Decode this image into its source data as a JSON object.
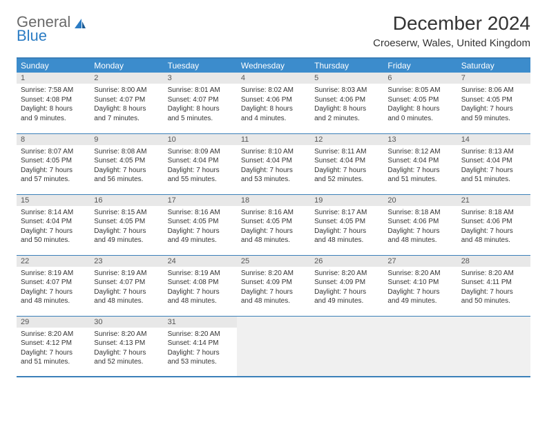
{
  "logo": {
    "line1": "General",
    "line2": "Blue"
  },
  "title": "December 2024",
  "subtitle": "Croeserw, Wales, United Kingdom",
  "colors": {
    "header_bg": "#3c8ccc",
    "border": "#3a7fb8",
    "daynum_bg": "#e8e8e8",
    "empty_bg": "#f0f0f0",
    "logo_gray": "#6a6a6a",
    "logo_blue": "#2b7cc4"
  },
  "day_headers": [
    "Sunday",
    "Monday",
    "Tuesday",
    "Wednesday",
    "Thursday",
    "Friday",
    "Saturday"
  ],
  "weeks": [
    [
      {
        "n": "1",
        "sunrise": "Sunrise: 7:58 AM",
        "sunset": "Sunset: 4:08 PM",
        "daylight": "Daylight: 8 hours and 9 minutes."
      },
      {
        "n": "2",
        "sunrise": "Sunrise: 8:00 AM",
        "sunset": "Sunset: 4:07 PM",
        "daylight": "Daylight: 8 hours and 7 minutes."
      },
      {
        "n": "3",
        "sunrise": "Sunrise: 8:01 AM",
        "sunset": "Sunset: 4:07 PM",
        "daylight": "Daylight: 8 hours and 5 minutes."
      },
      {
        "n": "4",
        "sunrise": "Sunrise: 8:02 AM",
        "sunset": "Sunset: 4:06 PM",
        "daylight": "Daylight: 8 hours and 4 minutes."
      },
      {
        "n": "5",
        "sunrise": "Sunrise: 8:03 AM",
        "sunset": "Sunset: 4:06 PM",
        "daylight": "Daylight: 8 hours and 2 minutes."
      },
      {
        "n": "6",
        "sunrise": "Sunrise: 8:05 AM",
        "sunset": "Sunset: 4:05 PM",
        "daylight": "Daylight: 8 hours and 0 minutes."
      },
      {
        "n": "7",
        "sunrise": "Sunrise: 8:06 AM",
        "sunset": "Sunset: 4:05 PM",
        "daylight": "Daylight: 7 hours and 59 minutes."
      }
    ],
    [
      {
        "n": "8",
        "sunrise": "Sunrise: 8:07 AM",
        "sunset": "Sunset: 4:05 PM",
        "daylight": "Daylight: 7 hours and 57 minutes."
      },
      {
        "n": "9",
        "sunrise": "Sunrise: 8:08 AM",
        "sunset": "Sunset: 4:05 PM",
        "daylight": "Daylight: 7 hours and 56 minutes."
      },
      {
        "n": "10",
        "sunrise": "Sunrise: 8:09 AM",
        "sunset": "Sunset: 4:04 PM",
        "daylight": "Daylight: 7 hours and 55 minutes."
      },
      {
        "n": "11",
        "sunrise": "Sunrise: 8:10 AM",
        "sunset": "Sunset: 4:04 PM",
        "daylight": "Daylight: 7 hours and 53 minutes."
      },
      {
        "n": "12",
        "sunrise": "Sunrise: 8:11 AM",
        "sunset": "Sunset: 4:04 PM",
        "daylight": "Daylight: 7 hours and 52 minutes."
      },
      {
        "n": "13",
        "sunrise": "Sunrise: 8:12 AM",
        "sunset": "Sunset: 4:04 PM",
        "daylight": "Daylight: 7 hours and 51 minutes."
      },
      {
        "n": "14",
        "sunrise": "Sunrise: 8:13 AM",
        "sunset": "Sunset: 4:04 PM",
        "daylight": "Daylight: 7 hours and 51 minutes."
      }
    ],
    [
      {
        "n": "15",
        "sunrise": "Sunrise: 8:14 AM",
        "sunset": "Sunset: 4:04 PM",
        "daylight": "Daylight: 7 hours and 50 minutes."
      },
      {
        "n": "16",
        "sunrise": "Sunrise: 8:15 AM",
        "sunset": "Sunset: 4:05 PM",
        "daylight": "Daylight: 7 hours and 49 minutes."
      },
      {
        "n": "17",
        "sunrise": "Sunrise: 8:16 AM",
        "sunset": "Sunset: 4:05 PM",
        "daylight": "Daylight: 7 hours and 49 minutes."
      },
      {
        "n": "18",
        "sunrise": "Sunrise: 8:16 AM",
        "sunset": "Sunset: 4:05 PM",
        "daylight": "Daylight: 7 hours and 48 minutes."
      },
      {
        "n": "19",
        "sunrise": "Sunrise: 8:17 AM",
        "sunset": "Sunset: 4:05 PM",
        "daylight": "Daylight: 7 hours and 48 minutes."
      },
      {
        "n": "20",
        "sunrise": "Sunrise: 8:18 AM",
        "sunset": "Sunset: 4:06 PM",
        "daylight": "Daylight: 7 hours and 48 minutes."
      },
      {
        "n": "21",
        "sunrise": "Sunrise: 8:18 AM",
        "sunset": "Sunset: 4:06 PM",
        "daylight": "Daylight: 7 hours and 48 minutes."
      }
    ],
    [
      {
        "n": "22",
        "sunrise": "Sunrise: 8:19 AM",
        "sunset": "Sunset: 4:07 PM",
        "daylight": "Daylight: 7 hours and 48 minutes."
      },
      {
        "n": "23",
        "sunrise": "Sunrise: 8:19 AM",
        "sunset": "Sunset: 4:07 PM",
        "daylight": "Daylight: 7 hours and 48 minutes."
      },
      {
        "n": "24",
        "sunrise": "Sunrise: 8:19 AM",
        "sunset": "Sunset: 4:08 PM",
        "daylight": "Daylight: 7 hours and 48 minutes."
      },
      {
        "n": "25",
        "sunrise": "Sunrise: 8:20 AM",
        "sunset": "Sunset: 4:09 PM",
        "daylight": "Daylight: 7 hours and 48 minutes."
      },
      {
        "n": "26",
        "sunrise": "Sunrise: 8:20 AM",
        "sunset": "Sunset: 4:09 PM",
        "daylight": "Daylight: 7 hours and 49 minutes."
      },
      {
        "n": "27",
        "sunrise": "Sunrise: 8:20 AM",
        "sunset": "Sunset: 4:10 PM",
        "daylight": "Daylight: 7 hours and 49 minutes."
      },
      {
        "n": "28",
        "sunrise": "Sunrise: 8:20 AM",
        "sunset": "Sunset: 4:11 PM",
        "daylight": "Daylight: 7 hours and 50 minutes."
      }
    ],
    [
      {
        "n": "29",
        "sunrise": "Sunrise: 8:20 AM",
        "sunset": "Sunset: 4:12 PM",
        "daylight": "Daylight: 7 hours and 51 minutes."
      },
      {
        "n": "30",
        "sunrise": "Sunrise: 8:20 AM",
        "sunset": "Sunset: 4:13 PM",
        "daylight": "Daylight: 7 hours and 52 minutes."
      },
      {
        "n": "31",
        "sunrise": "Sunrise: 8:20 AM",
        "sunset": "Sunset: 4:14 PM",
        "daylight": "Daylight: 7 hours and 53 minutes."
      },
      null,
      null,
      null,
      null
    ]
  ]
}
